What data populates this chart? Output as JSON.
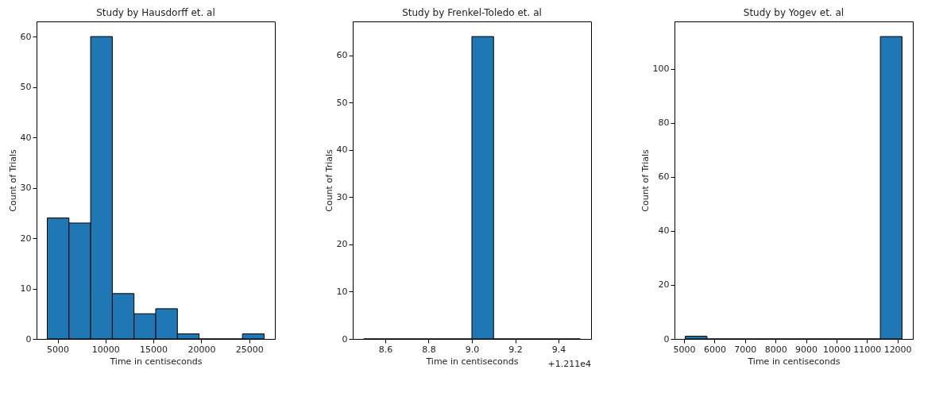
{
  "chart_data": [
    {
      "type": "histogram",
      "title": "Study by Hausdorff et. al",
      "xlabel": "Time in centiseconds",
      "ylabel": "Count of Trials",
      "color": "#1f77b4",
      "grid": false,
      "bins": [
        3920,
        6184,
        8448,
        10712,
        12976,
        15240,
        17504,
        19768,
        22032,
        24296,
        26560
      ],
      "values": [
        24,
        23,
        60,
        9,
        5,
        6,
        1,
        0,
        0,
        1
      ],
      "xlim": [
        2800,
        27680
      ],
      "xticks": [
        5000,
        10000,
        15000,
        20000,
        25000
      ],
      "ylim": [
        0,
        63
      ],
      "yticks": [
        0,
        10,
        20,
        30,
        40,
        50,
        60
      ]
    },
    {
      "type": "histogram",
      "title": "Study by Frenkel-Toledo et. al",
      "xlabel": "Time in centiseconds",
      "ylabel": "Count of Trials",
      "color": "#1f77b4",
      "grid": false,
      "bins": [
        8.5,
        8.6,
        8.7,
        8.8,
        8.9,
        9.0,
        9.1,
        9.2,
        9.3,
        9.4,
        9.5
      ],
      "values": [
        0,
        0,
        0,
        0,
        0,
        64,
        0,
        0,
        0,
        0
      ],
      "xlim": [
        8.45,
        9.55
      ],
      "xticks": [
        8.6,
        8.8,
        {
          "value": 9,
          "label": "9.0"
        },
        9.2,
        9.4
      ],
      "ylim": [
        0,
        67.2
      ],
      "yticks": [
        0,
        10,
        20,
        30,
        40,
        50,
        60
      ],
      "annotations": [
        "+1.211e4"
      ]
    },
    {
      "type": "histogram",
      "title": "Study by Yogev et. al",
      "xlabel": "Time in centiseconds",
      "ylabel": "Count of Trials",
      "color": "#1f77b4",
      "grid": false,
      "bins": [
        5040,
        5751,
        6462,
        7173,
        7884,
        8595,
        9306,
        10017,
        10728,
        11439,
        12150
      ],
      "values": [
        1,
        0,
        0,
        0,
        0,
        0,
        0,
        0,
        0,
        112
      ],
      "xlim": [
        4685,
        12505
      ],
      "xticks": [
        5000,
        6000,
        7000,
        8000,
        9000,
        10000,
        11000,
        12000
      ],
      "ylim": [
        0,
        117.6
      ],
      "yticks": [
        0,
        20,
        40,
        60,
        80,
        100
      ]
    }
  ]
}
